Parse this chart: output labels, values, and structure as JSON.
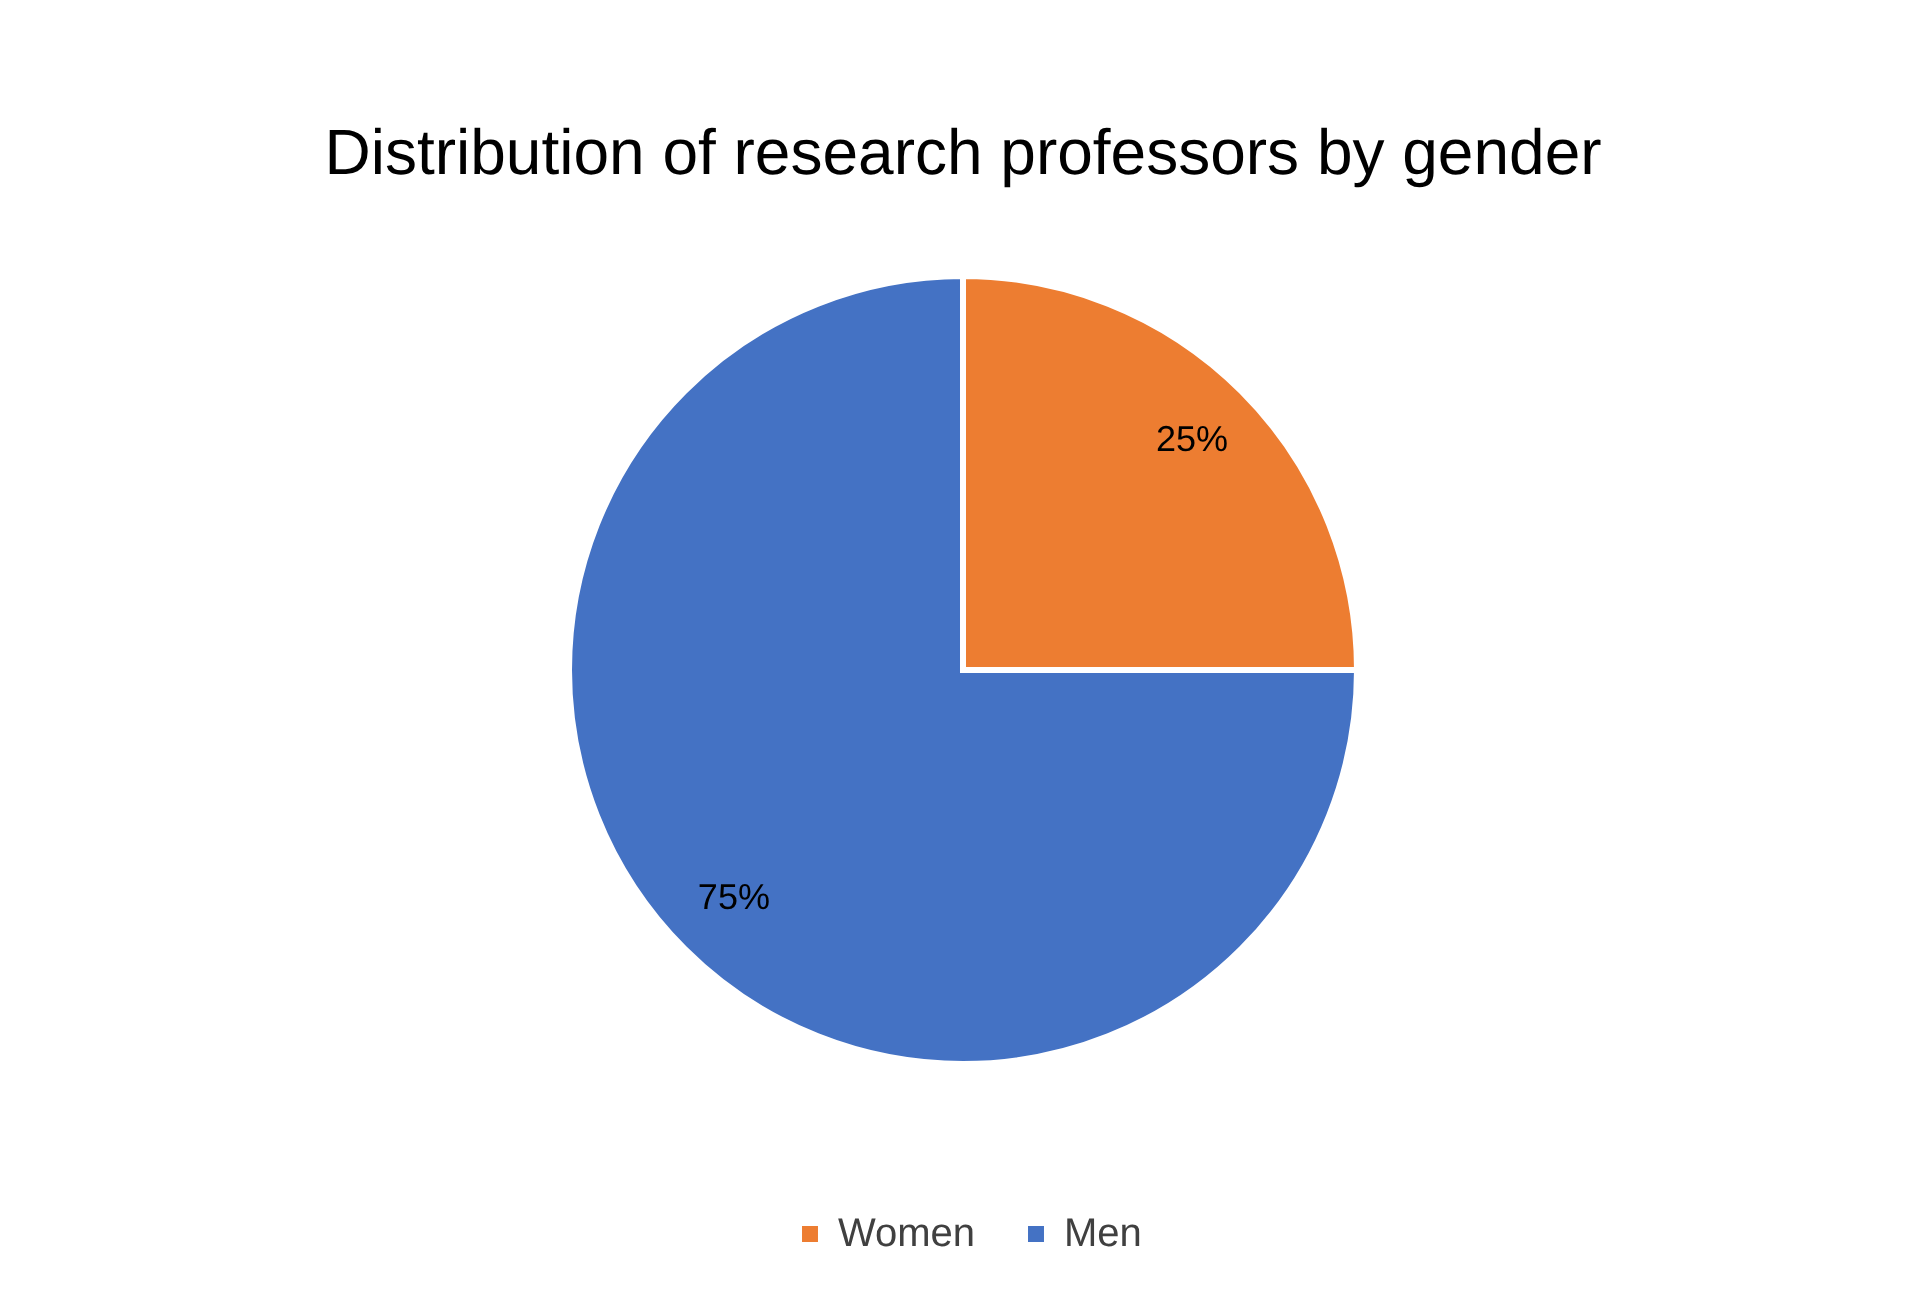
{
  "chart_data": {
    "type": "pie",
    "title": "Distribution of research professors by gender",
    "categories": [
      "Women",
      "Men"
    ],
    "values": [
      25,
      75
    ],
    "colors": [
      "#ed7d31",
      "#4472c4"
    ],
    "value_labels": [
      "25%",
      "75%"
    ],
    "legend": "bottom"
  }
}
